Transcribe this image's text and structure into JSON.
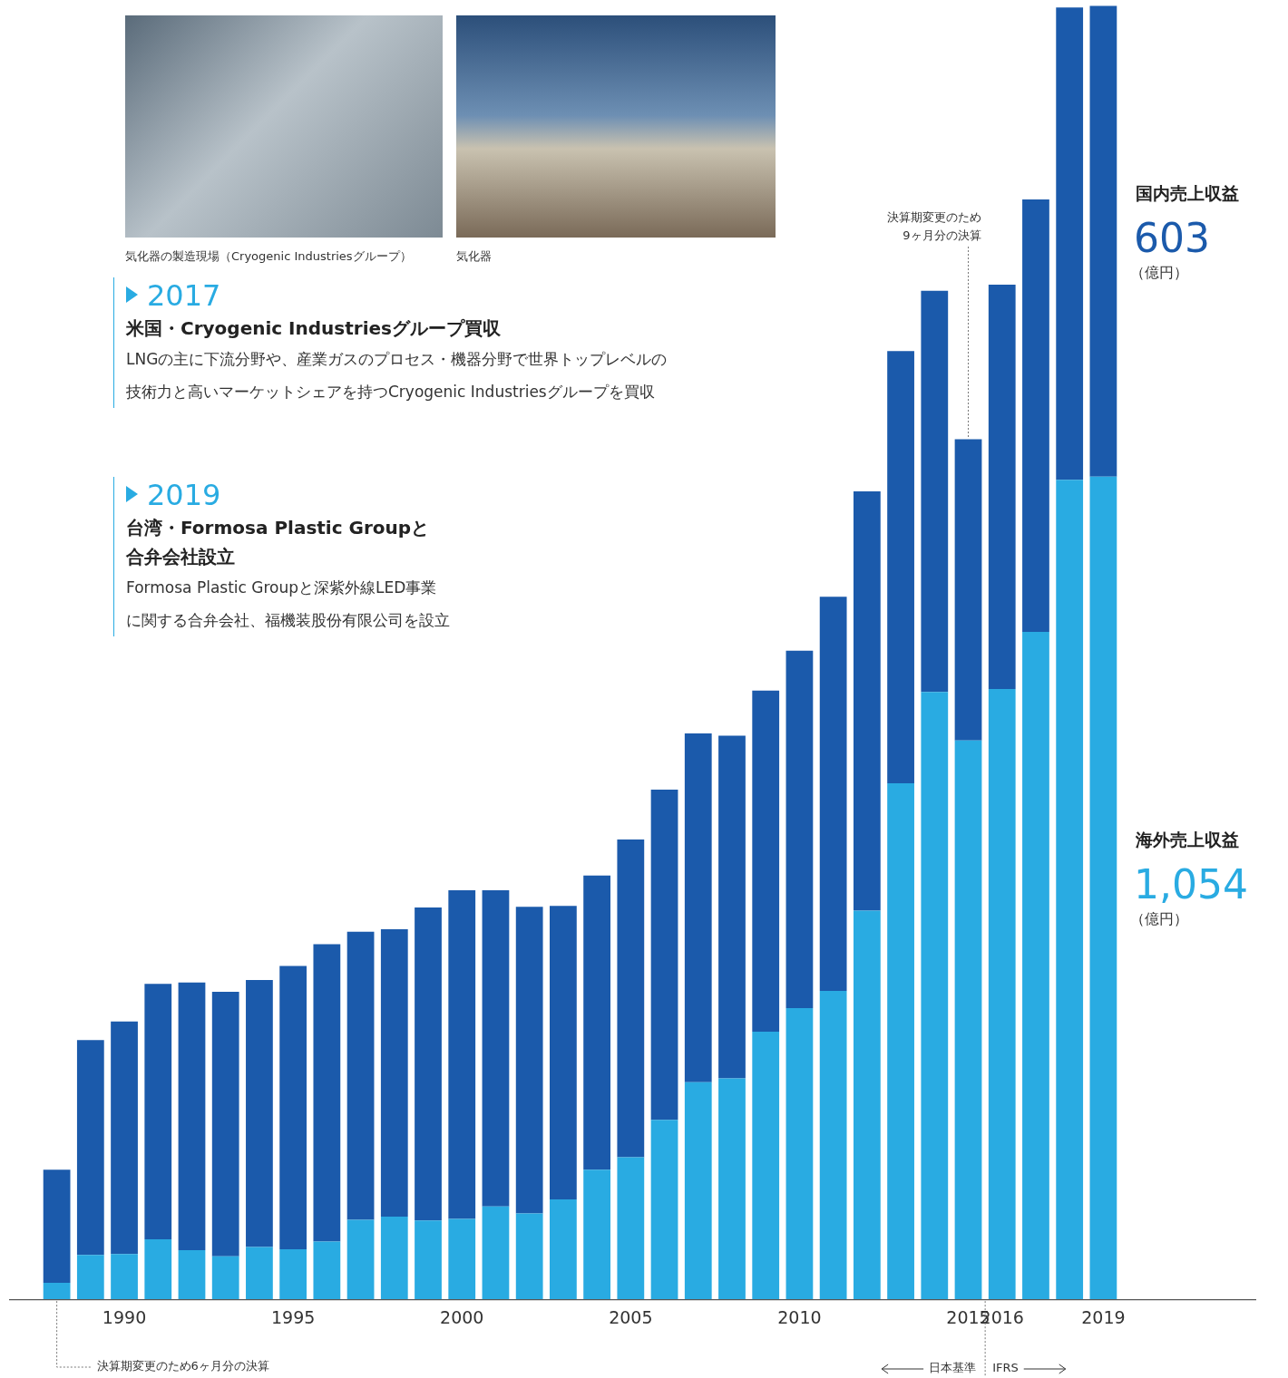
{
  "chart_data": {
    "type": "bar",
    "stacked": true,
    "grid": false,
    "tick_labels": "x",
    "categories": [
      null,
      null,
      "1990",
      null,
      null,
      null,
      null,
      "1995",
      null,
      null,
      null,
      null,
      "2000",
      null,
      null,
      null,
      null,
      "2005",
      null,
      null,
      null,
      null,
      "2010",
      null,
      null,
      null,
      null,
      "2015",
      "2016",
      null,
      null,
      "2019"
    ],
    "ylim": [
      0,
      1660
    ],
    "series": [
      {
        "name": "海外売上収益",
        "color": "#29abe2",
        "values": [
          21,
          57,
          58,
          77,
          63,
          55,
          67,
          64,
          74,
          102,
          106,
          101,
          103,
          119,
          110,
          128,
          166,
          182,
          230,
          278,
          283,
          343,
          373,
          395,
          498,
          661,
          778,
          716,
          782,
          855,
          1050,
          1054
        ]
      },
      {
        "name": "国内売上収益",
        "color": "#1b5aab",
        "values": [
          145,
          275,
          298,
          327,
          343,
          339,
          342,
          363,
          381,
          369,
          368,
          401,
          421,
          405,
          393,
          376,
          377,
          407,
          423,
          447,
          439,
          437,
          458,
          505,
          537,
          554,
          514,
          386,
          518,
          554,
          605,
          603
        ]
      }
    ],
    "end_labels": [
      {
        "series": "国内売上収益",
        "value": 603,
        "label": "603",
        "unit": "（億円）"
      },
      {
        "series": "海外売上収益",
        "value": 1054,
        "label": "1,054",
        "unit": "（億円）"
      }
    ],
    "notes": [
      {
        "lines": [
          "決算期変更のため6ヶ月分の決算"
        ]
      },
      {
        "lines": [
          "決算期変更のため",
          "9ヶ月分の決算"
        ]
      }
    ],
    "standards": [
      "日本基準",
      "IFRS"
    ],
    "photo_captions": [
      "気化器の製造現場（Cryogenic Industriesグループ）",
      "気化器"
    ],
    "events": [
      {
        "year": "2017",
        "heading": [
          "米国・Cryogenic Industriesグループ買収"
        ],
        "description": [
          "LNGの主に下流分野や、産業ガスのプロセス・機器分野で世界トップレベルの",
          "技術力と高いマーケットシェアを持つCryogenic Industriesグループを買収"
        ]
      },
      {
        "year": "2019",
        "heading": [
          "台湾・Formosa Plastic Groupと",
          "合弁会社設立"
        ],
        "description": [
          "Formosa Plastic Groupと深紫外線LED事業",
          "に関する合弁会社、福機装股份有限公司を設立"
        ]
      }
    ]
  }
}
